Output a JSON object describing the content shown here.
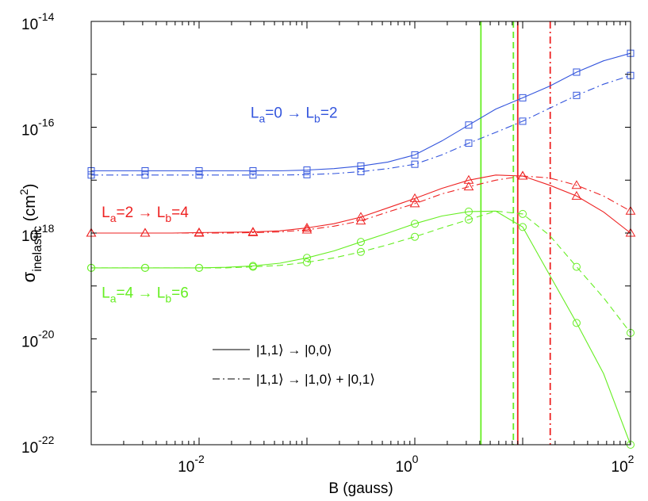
{
  "chart_data": {
    "type": "line",
    "xscale": "log",
    "yscale": "log",
    "xlim": [
      0.001,
      100
    ],
    "ylim": [
      1e-22,
      1e-14
    ],
    "xlabel": "B (gauss)",
    "ylabel": {
      "base": "σ",
      "sub": "inelastic",
      "unit_open": " (cm",
      "unit_sup": "2",
      "unit_close": ")"
    },
    "x_ticks": [
      {
        "value": 0.01,
        "base": "10",
        "exp": "-2"
      },
      {
        "value": 1,
        "base": "10",
        "exp": "0"
      },
      {
        "value": 100,
        "base": "10",
        "exp": "2"
      }
    ],
    "y_ticks": [
      {
        "value": 1e-14,
        "base": "10",
        "exp": "-14"
      },
      {
        "value": 1e-16,
        "base": "10",
        "exp": "-16"
      },
      {
        "value": 1e-18,
        "base": "10",
        "exp": "-18"
      },
      {
        "value": 1e-20,
        "base": "10",
        "exp": "-20"
      },
      {
        "value": 1e-22,
        "base": "10",
        "exp": "-22"
      }
    ],
    "x": [
      0.001,
      0.00178,
      0.00316,
      0.00562,
      0.01,
      0.0178,
      0.0316,
      0.0562,
      0.1,
      0.178,
      0.316,
      0.562,
      1,
      1.78,
      3.16,
      5.62,
      10,
      17.8,
      31.6,
      56.2,
      100
    ],
    "vertical_lines": [
      {
        "x": 4.1,
        "color": "#66ee22",
        "style": "solid"
      },
      {
        "x": 8.2,
        "color": "#66ee22",
        "style": "dashed"
      },
      {
        "x": 9.0,
        "color": "#ee2222",
        "style": "solid"
      },
      {
        "x": 18.0,
        "color": "#ee2222",
        "style": "dashdot"
      }
    ],
    "series": [
      {
        "name": "La=0 → Lb=2, |1,1⟩ → |0,0⟩",
        "color": "#3355dd",
        "marker": "square",
        "style": "solid",
        "values": [
          1.5e-17,
          1.5e-17,
          1.5e-17,
          1.5e-17,
          1.5e-17,
          1.5e-17,
          1.5e-17,
          1.5e-17,
          1.55e-17,
          1.65e-17,
          1.85e-17,
          2.2e-17,
          3e-17,
          5.5e-17,
          1.1e-16,
          2.2e-16,
          3.6e-16,
          6e-16,
          1.1e-15,
          1.8e-15,
          2.5e-15
        ]
      },
      {
        "name": "La=0 → Lb=2, |1,1⟩ → |1,0⟩ + |0,1⟩",
        "color": "#3355dd",
        "marker": "square",
        "style": "dashdot",
        "values": [
          1.25e-17,
          1.25e-17,
          1.25e-17,
          1.25e-17,
          1.25e-17,
          1.25e-17,
          1.25e-17,
          1.25e-17,
          1.27e-17,
          1.33e-17,
          1.45e-17,
          1.65e-17,
          2e-17,
          3e-17,
          5e-17,
          8e-17,
          1.3e-16,
          2.3e-16,
          4e-16,
          6.5e-16,
          9.5e-16
        ]
      },
      {
        "name": "La=2 → Lb=4, |1,1⟩ → |0,0⟩",
        "color": "#ee2222",
        "marker": "triangle",
        "style": "solid",
        "values": [
          1e-18,
          1e-18,
          1e-18,
          1e-18,
          1.02e-18,
          1.03e-18,
          1.05e-18,
          1.1e-18,
          1.25e-18,
          1.5e-18,
          2e-18,
          3e-18,
          4.5e-18,
          7e-18,
          1e-17,
          1.25e-17,
          1.2e-17,
          8e-18,
          5e-18,
          2.5e-18,
          1e-18
        ]
      },
      {
        "name": "La=2 → Lb=4, |1,1⟩ → |1,0⟩ + |0,1⟩",
        "color": "#ee2222",
        "marker": "triangle",
        "style": "dashdot",
        "values": [
          1e-18,
          1e-18,
          1e-18,
          1e-18,
          1e-18,
          1e-18,
          1.02e-18,
          1.05e-18,
          1.15e-18,
          1.35e-18,
          1.7e-18,
          2.5e-18,
          3.6e-18,
          5.5e-18,
          7.5e-18,
          1e-17,
          1.2e-17,
          1.1e-17,
          8e-18,
          5e-18,
          2.6e-18
        ]
      },
      {
        "name": "La=4 → Lb=6, |1,1⟩ → |0,0⟩",
        "color": "#66ee22",
        "marker": "circle",
        "style": "solid",
        "values": [
          2.2e-19,
          2.2e-19,
          2.2e-19,
          2.2e-19,
          2.2e-19,
          2.25e-19,
          2.4e-19,
          2.7e-19,
          3.4e-19,
          4.6e-19,
          6.8e-19,
          1e-18,
          1.5e-18,
          2.1e-18,
          2.55e-18,
          2.6e-18,
          1.3e-18,
          1.6e-19,
          2e-20,
          2.2e-21,
          1e-22
        ]
      },
      {
        "name": "La=4 → Lb=6, |1,1⟩ → |1,0⟩ + |0,1⟩",
        "color": "#66ee22",
        "marker": "circle",
        "style": "dashed",
        "values": [
          2.2e-19,
          2.2e-19,
          2.2e-19,
          2.2e-19,
          2.2e-19,
          2.2e-19,
          2.3e-19,
          2.45e-19,
          2.8e-19,
          3.4e-19,
          4.4e-19,
          6e-19,
          8.5e-19,
          1.25e-18,
          1.8e-18,
          2.6e-18,
          2.3e-18,
          9e-19,
          2.3e-19,
          6e-20,
          1.3e-20
        ]
      }
    ],
    "series_labels": [
      {
        "series": 0,
        "color": "#3355dd",
        "parts": [
          {
            "t": "L"
          },
          {
            "t": "a",
            "sub": true
          },
          {
            "t": "=0 → L"
          },
          {
            "t": "b",
            "sub": true
          },
          {
            "t": "=2"
          }
        ],
        "anchor": {
          "x": 0.03,
          "y": 1.5e-16
        }
      },
      {
        "series": 2,
        "color": "#ee2222",
        "parts": [
          {
            "t": "L"
          },
          {
            "t": "a",
            "sub": true
          },
          {
            "t": "=2 → L"
          },
          {
            "t": "b",
            "sub": true
          },
          {
            "t": "=4"
          }
        ],
        "anchor": {
          "x": 0.00125,
          "y": 2e-18
        }
      },
      {
        "series": 4,
        "color": "#66ee22",
        "parts": [
          {
            "t": "L"
          },
          {
            "t": "a",
            "sub": true
          },
          {
            "t": "=4 → L"
          },
          {
            "t": "b",
            "sub": true
          },
          {
            "t": "=6"
          }
        ],
        "anchor": {
          "x": 0.00125,
          "y": 6e-20
        }
      }
    ],
    "legend": {
      "placement": "bottom-center",
      "entries": [
        {
          "label": "|1,1⟩ → |0,0⟩",
          "style": "solid"
        },
        {
          "label": "|1,1⟩ → |1,0⟩ + |0,1⟩",
          "style": "dashdot"
        }
      ]
    }
  }
}
